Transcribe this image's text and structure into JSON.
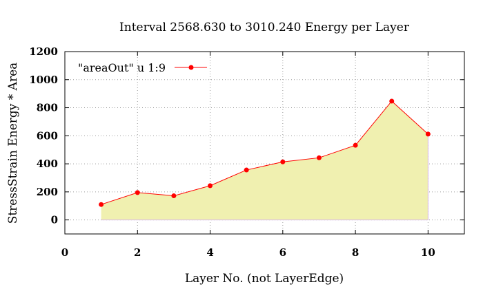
{
  "chart_data": {
    "type": "area",
    "title": "Interval 2568.630 to 3010.240 Energy per Layer",
    "xlabel": "Layer No. (not LayerEdge)",
    "ylabel": "StressStrain Energy * Area",
    "xlim": [
      0,
      11
    ],
    "ylim": [
      -100,
      1200
    ],
    "xticks": [
      "0",
      "2",
      "4",
      "6",
      "8",
      "10"
    ],
    "yticks": [
      "0",
      "200",
      "400",
      "600",
      "800",
      "1000",
      "1200"
    ],
    "grid": true,
    "legend_position": "top-left",
    "series": [
      {
        "name": "\"areaOut\"  u 1:9",
        "x": [
          1,
          2,
          3,
          4,
          5,
          6,
          7,
          8,
          9,
          10
        ],
        "values": [
          110,
          195,
          172,
          244,
          356,
          414,
          443,
          532,
          847,
          612
        ],
        "line_color": "#ff0000",
        "fill_color": "#f0f0b0"
      }
    ]
  }
}
